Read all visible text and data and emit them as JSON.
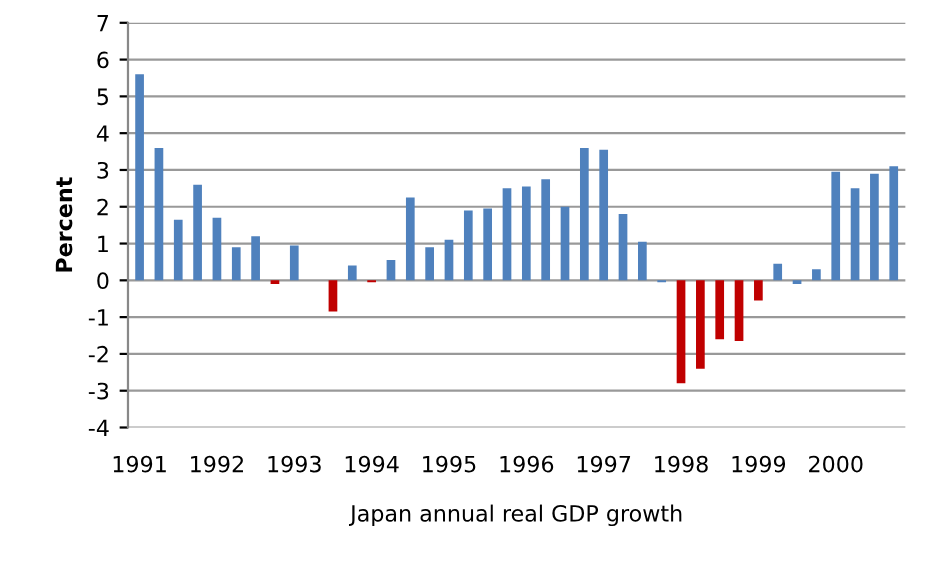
{
  "chart_data": {
    "type": "bar",
    "xlabel": "Japan annual real GDP growth",
    "ylabel": "Percent",
    "categories": [
      "1991",
      null,
      null,
      null,
      "1992",
      null,
      null,
      null,
      "1993",
      null,
      null,
      null,
      "1994",
      null,
      null,
      null,
      "1995",
      null,
      null,
      null,
      "1996",
      null,
      null,
      null,
      "1997",
      null,
      null,
      null,
      "1998",
      null,
      null,
      null,
      "1999",
      null,
      null,
      null,
      "2000",
      null,
      null,
      null
    ],
    "values": [
      5.6,
      3.6,
      1.65,
      2.6,
      1.7,
      0.9,
      1.2,
      -0.1,
      0.95,
      0,
      -0.85,
      0.4,
      -0.05,
      0.55,
      2.25,
      0.9,
      1.1,
      1.9,
      1.95,
      2.5,
      2.55,
      2.75,
      2.0,
      3.6,
      3.55,
      1.8,
      1.05,
      -0.05,
      -2.8,
      -2.4,
      -1.6,
      -1.65,
      -0.55,
      0.45,
      -0.1,
      0.3,
      2.95,
      2.5,
      2.9,
      3.1
    ],
    "colors": [
      "#4f81bd",
      "#4f81bd",
      "#4f81bd",
      "#4f81bd",
      "#4f81bd",
      "#4f81bd",
      "#4f81bd",
      "#c00000",
      "#4f81bd",
      "#4f81bd",
      "#c00000",
      "#4f81bd",
      "#c00000",
      "#4f81bd",
      "#4f81bd",
      "#4f81bd",
      "#4f81bd",
      "#4f81bd",
      "#4f81bd",
      "#4f81bd",
      "#4f81bd",
      "#4f81bd",
      "#4f81bd",
      "#4f81bd",
      "#4f81bd",
      "#4f81bd",
      "#4f81bd",
      "#4f81bd",
      "#c00000",
      "#c00000",
      "#c00000",
      "#c00000",
      "#c00000",
      "#4f81bd",
      "#4f81bd",
      "#4f81bd",
      "#4f81bd",
      "#4f81bd",
      "#4f81bd",
      "#4f81bd"
    ],
    "ylim": [
      -4,
      7
    ],
    "yticks": [
      -4,
      -3,
      -2,
      -1,
      0,
      1,
      2,
      3,
      4,
      5,
      6,
      7
    ],
    "grid": "y",
    "legend": false
  }
}
